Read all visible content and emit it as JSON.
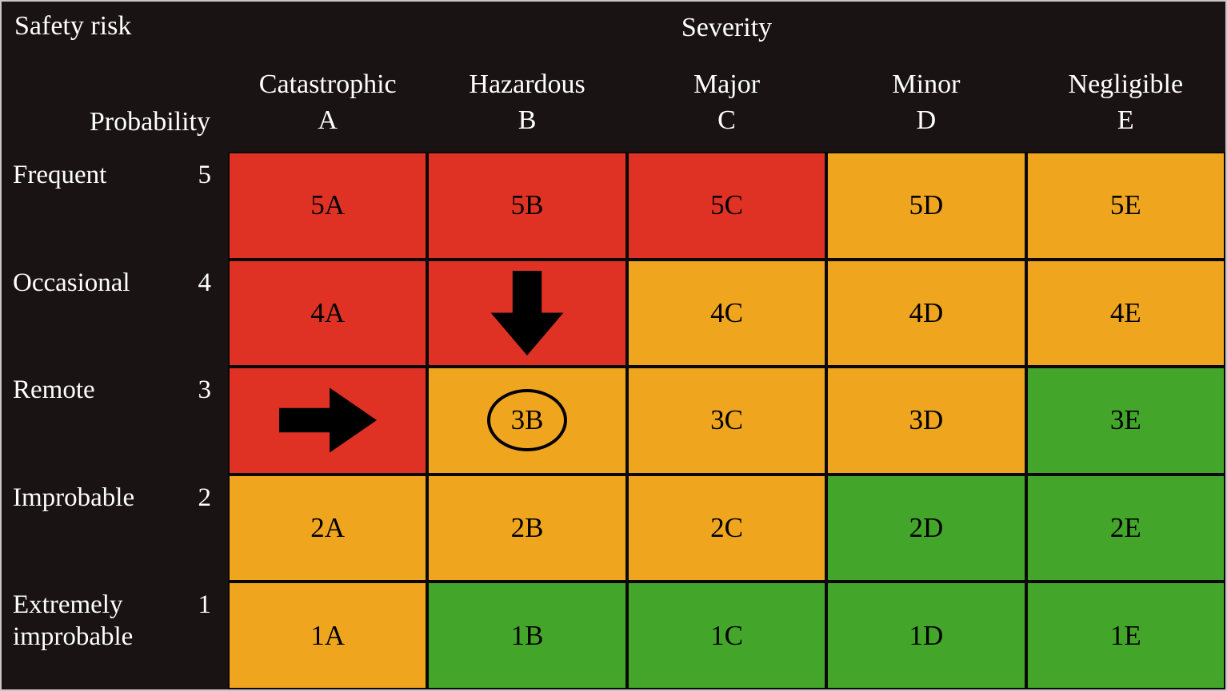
{
  "header": {
    "title": "Safety risk",
    "severity_label": "Severity",
    "probability_label": "Probability"
  },
  "columns": [
    {
      "name": "Catastrophic",
      "letter": "A"
    },
    {
      "name": "Hazardous",
      "letter": "B"
    },
    {
      "name": "Major",
      "letter": "C"
    },
    {
      "name": "Minor",
      "letter": "D"
    },
    {
      "name": "Negligible",
      "letter": "E"
    }
  ],
  "rows": [
    {
      "name": "Frequent",
      "number": "5",
      "cells": [
        {
          "id": "5A",
          "text": "5A",
          "color": "red"
        },
        {
          "id": "5B",
          "text": "5B",
          "color": "red"
        },
        {
          "id": "5C",
          "text": "5C",
          "color": "red"
        },
        {
          "id": "5D",
          "text": "5D",
          "color": "orange"
        },
        {
          "id": "5E",
          "text": "5E",
          "color": "orange"
        }
      ]
    },
    {
      "name": "Occasional",
      "number": "4",
      "cells": [
        {
          "id": "4A",
          "text": "4A",
          "color": "red"
        },
        {
          "id": "4B",
          "text": "",
          "color": "red",
          "annotation": "arrow-down"
        },
        {
          "id": "4C",
          "text": "4C",
          "color": "orange"
        },
        {
          "id": "4D",
          "text": "4D",
          "color": "orange"
        },
        {
          "id": "4E",
          "text": "4E",
          "color": "orange"
        }
      ]
    },
    {
      "name": "Remote",
      "number": "3",
      "cells": [
        {
          "id": "3A",
          "text": "",
          "color": "red",
          "annotation": "arrow-right"
        },
        {
          "id": "3B",
          "text": "3B",
          "color": "orange",
          "annotation": "circled"
        },
        {
          "id": "3C",
          "text": "3C",
          "color": "orange"
        },
        {
          "id": "3D",
          "text": "3D",
          "color": "orange"
        },
        {
          "id": "3E",
          "text": "3E",
          "color": "green"
        }
      ]
    },
    {
      "name": "Improbable",
      "number": "2",
      "cells": [
        {
          "id": "2A",
          "text": "2A",
          "color": "orange"
        },
        {
          "id": "2B",
          "text": "2B",
          "color": "orange"
        },
        {
          "id": "2C",
          "text": "2C",
          "color": "orange"
        },
        {
          "id": "2D",
          "text": "2D",
          "color": "green"
        },
        {
          "id": "2E",
          "text": "2E",
          "color": "green"
        }
      ]
    },
    {
      "name": "Extremely improbable",
      "number": "1",
      "cells": [
        {
          "id": "1A",
          "text": "1A",
          "color": "orange"
        },
        {
          "id": "1B",
          "text": "1B",
          "color": "green"
        },
        {
          "id": "1C",
          "text": "1C",
          "color": "green"
        },
        {
          "id": "1D",
          "text": "1D",
          "color": "green"
        },
        {
          "id": "1E",
          "text": "1E",
          "color": "green"
        }
      ]
    }
  ],
  "colors": {
    "red": "#e03224",
    "orange": "#f0a51e",
    "green": "#43a62a",
    "background": "#1a1313",
    "cell_text": "#000000",
    "label_text": "#ffffff"
  },
  "annotations": {
    "down_arrow_cell": "4B",
    "right_arrow_cell": "3A",
    "circled_cell": "3B"
  }
}
